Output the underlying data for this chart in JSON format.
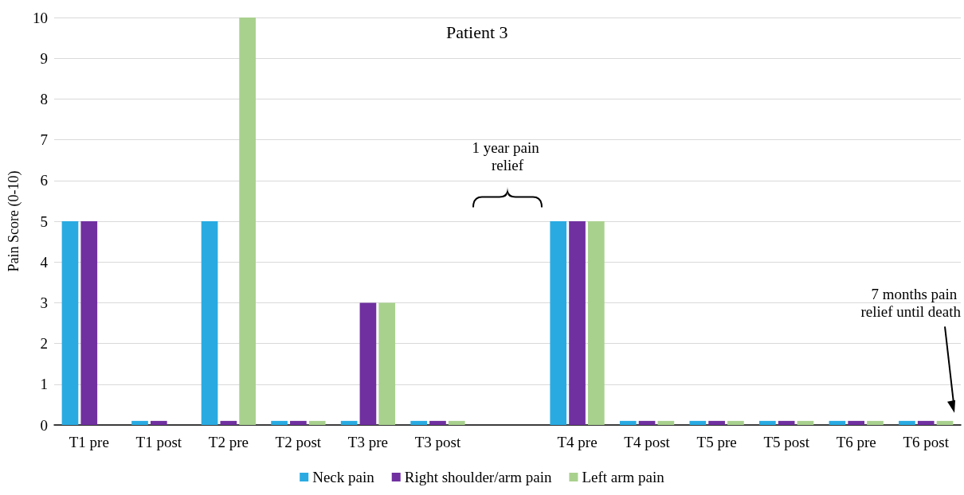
{
  "chart_data": {
    "type": "bar",
    "title": "Patient 3",
    "ylabel": "Pain Score (0-10)",
    "categories": [
      "T1 pre",
      "T1 post",
      "T2 pre",
      "T2 post",
      "T3 pre",
      "T3 post",
      null,
      "T4 pre",
      "T4 post",
      "T5 pre",
      "T5 post",
      "T6 pre",
      "T6 post"
    ],
    "series": [
      {
        "name": "Neck pain",
        "color": "#29abe2",
        "values": [
          5,
          0.1,
          5,
          0.1,
          0.1,
          0.1,
          null,
          5,
          0.1,
          0.1,
          0.1,
          0.1,
          0.1
        ]
      },
      {
        "name": "Right shoulder/arm pain",
        "color": "#7030a0",
        "values": [
          5,
          0.1,
          0.1,
          0.1,
          3,
          0.1,
          null,
          5,
          0.1,
          0.1,
          0.1,
          0.1,
          0.1
        ]
      },
      {
        "name": "Left arm pain",
        "color": "#a9d18e",
        "values": [
          0,
          0,
          10,
          0.1,
          3,
          0.1,
          null,
          5,
          0.1,
          0.1,
          0.1,
          0.1,
          0.1
        ]
      }
    ],
    "ylim": [
      0,
      10
    ],
    "yticks": [
      0,
      1,
      2,
      3,
      4,
      5,
      6,
      7,
      8,
      9,
      10
    ],
    "grid": "y",
    "legend": "bottom",
    "annotations": [
      "1 year pain relief",
      "7 months pain relief until death"
    ]
  }
}
